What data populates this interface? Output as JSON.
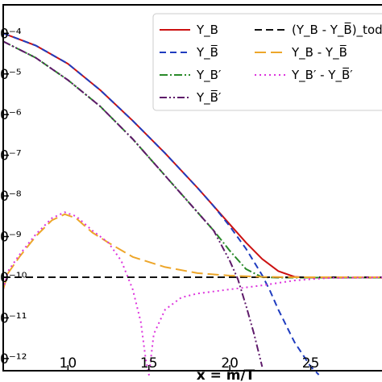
{
  "chart_data": {
    "type": "line",
    "xlabel": "x = m/T",
    "ylabel": "",
    "xlim": [
      6,
      30
    ],
    "ylim": [
      -12.3,
      -3.3
    ],
    "y_scale": "log10",
    "x_ticks": [
      10,
      15,
      20,
      25
    ],
    "y_ticks": [
      {
        "value": -4,
        "label": "0⁻⁴"
      },
      {
        "value": -5,
        "label": "0⁻⁵"
      },
      {
        "value": -6,
        "label": "0⁻⁶"
      },
      {
        "value": -7,
        "label": "0⁻⁷"
      },
      {
        "value": -8,
        "label": "0⁻⁸"
      },
      {
        "value": -9,
        "label": "0⁻⁹"
      },
      {
        "value": -10,
        "label": "0⁻¹⁰"
      },
      {
        "value": -11,
        "label": "0⁻¹¹"
      },
      {
        "value": -12,
        "label": "0⁻¹²"
      }
    ],
    "legend_position": "top-right",
    "series": [
      {
        "name": "Y_B",
        "color": "#cc1111",
        "dash": "solid",
        "x": [
          6,
          8,
          10,
          12,
          14,
          16,
          18,
          19,
          20,
          21,
          22,
          23,
          24,
          25,
          26,
          28,
          30
        ],
        "log10_y": [
          -4.0,
          -4.3,
          -4.75,
          -5.4,
          -6.15,
          -6.95,
          -7.8,
          -8.25,
          -8.7,
          -9.15,
          -9.55,
          -9.85,
          -9.99,
          -10.01,
          -10.01,
          -10.01,
          -10.01
        ]
      },
      {
        "name": "Y_B̅",
        "color": "#1f3cbf",
        "dash": "8,5",
        "x": [
          6,
          8,
          10,
          12,
          14,
          16,
          18,
          19,
          20,
          21,
          22,
          22.5,
          23,
          24,
          25,
          25.5
        ],
        "log10_y": [
          -4.0,
          -4.3,
          -4.75,
          -5.4,
          -6.15,
          -6.95,
          -7.8,
          -8.25,
          -8.75,
          -9.3,
          -9.95,
          -10.35,
          -10.8,
          -11.6,
          -12.2,
          -12.4
        ]
      },
      {
        "name": "Y_B′",
        "color": "#2a8a2a",
        "dash": "10,3,2,3",
        "x": [
          6,
          8,
          10,
          12,
          14,
          16,
          18,
          19,
          20,
          21,
          22,
          23,
          25,
          30
        ],
        "log10_y": [
          -4.2,
          -4.6,
          -5.15,
          -5.8,
          -6.6,
          -7.5,
          -8.4,
          -8.85,
          -9.35,
          -9.8,
          -10.0,
          -10.01,
          -10.01,
          -10.01
        ]
      },
      {
        "name": "Y_B̅′",
        "color": "#5e1a6a",
        "dash": "9,3,2,3,2,3",
        "x": [
          6,
          8,
          10,
          12,
          14,
          16,
          18,
          19,
          20,
          20.5,
          21,
          21.5,
          22
        ],
        "log10_y": [
          -4.2,
          -4.6,
          -5.15,
          -5.8,
          -6.6,
          -7.5,
          -8.4,
          -8.85,
          -9.6,
          -10.05,
          -10.7,
          -11.4,
          -12.2
        ]
      },
      {
        "name": "(Y_B - Y_B̅)_today",
        "color": "#111111",
        "dash": "9,5",
        "x": [
          6,
          30
        ],
        "log10_y": [
          -10.0,
          -10.0
        ]
      },
      {
        "name": "Y_B - Y_B̅",
        "color": "#eda62a",
        "dash": "14,6",
        "x": [
          6,
          6.3,
          7,
          8,
          9,
          9.8,
          10.5,
          11.5,
          12.5,
          14,
          16,
          18,
          20,
          22,
          24,
          26,
          30
        ],
        "log10_y": [
          -10.3,
          -9.9,
          -9.5,
          -9.0,
          -8.6,
          -8.45,
          -8.55,
          -8.9,
          -9.15,
          -9.5,
          -9.75,
          -9.9,
          -9.96,
          -9.99,
          -10.0,
          -10.0,
          -10.0
        ]
      },
      {
        "name": "Y_B′ - Y_B̅′",
        "color": "#dd33dd",
        "dash": "2,4",
        "x": [
          6,
          6.3,
          7,
          8,
          9,
          9.8,
          10.5,
          11.5,
          12.5,
          13.3,
          14,
          14.5,
          14.8,
          15.0,
          15.3,
          16,
          17,
          18,
          20,
          22,
          24,
          26,
          30
        ],
        "log10_y": [
          -10.3,
          -9.85,
          -9.45,
          -8.95,
          -8.55,
          -8.4,
          -8.5,
          -8.85,
          -9.15,
          -9.6,
          -10.3,
          -11.1,
          -12.0,
          -12.4,
          -11.4,
          -10.8,
          -10.5,
          -10.4,
          -10.3,
          -10.2,
          -10.08,
          -10.02,
          -10.0
        ]
      }
    ]
  }
}
